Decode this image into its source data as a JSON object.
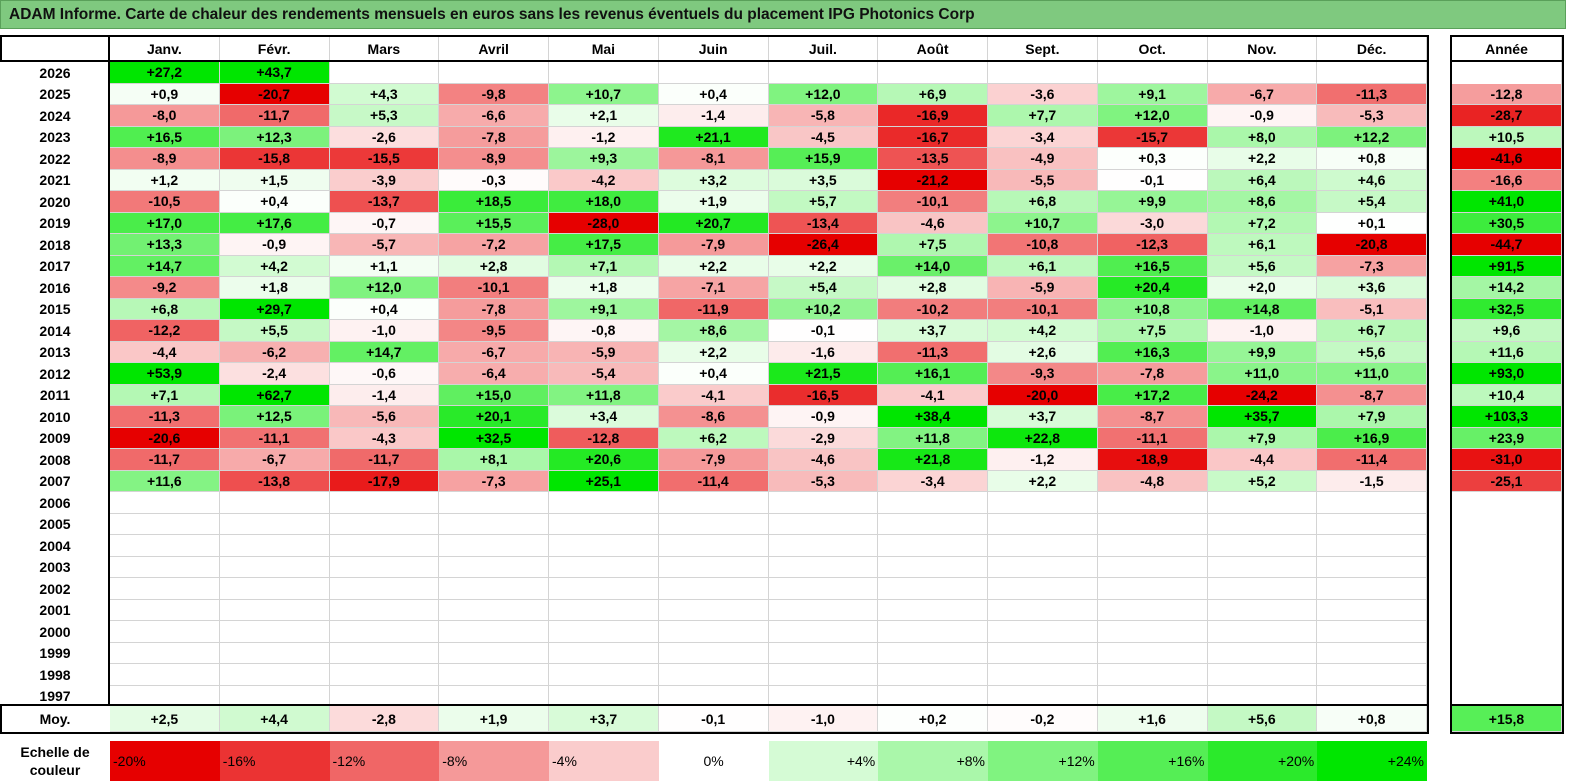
{
  "title": "ADAM Informe. Carte de chaleur des rendements mensuels en euros sans les revenus éventuels du placement IPG Photonics Corp",
  "chart_data": {
    "type": "heatmap",
    "months": [
      "Janv.",
      "Févr.",
      "Mars",
      "Avril",
      "Mai",
      "Juin",
      "Juil.",
      "Août",
      "Sept.",
      "Oct.",
      "Nov.",
      "Déc."
    ],
    "annual_header": "Année",
    "rows": [
      {
        "year": "2026",
        "values": [
          "+27,2",
          "+43,7",
          "",
          "",
          "",
          "",
          "",
          "",
          "",
          "",
          "",
          ""
        ],
        "annual": ""
      },
      {
        "year": "2025",
        "values": [
          "+0,9",
          "-20,7",
          "+4,3",
          "-9,8",
          "+10,7",
          "+0,4",
          "+12,0",
          "+6,9",
          "-3,6",
          "+9,1",
          "-6,7",
          "-11,3"
        ],
        "annual": "-12,8"
      },
      {
        "year": "2024",
        "values": [
          "-8,0",
          "-11,7",
          "+5,3",
          "-6,6",
          "+2,1",
          "-1,4",
          "-5,8",
          "-16,9",
          "+7,7",
          "+12,0",
          "-0,9",
          "-5,3"
        ],
        "annual": "-28,7"
      },
      {
        "year": "2023",
        "values": [
          "+16,5",
          "+12,3",
          "-2,6",
          "-7,8",
          "-1,2",
          "+21,1",
          "-4,5",
          "-16,7",
          "-3,4",
          "-15,7",
          "+8,0",
          "+12,2"
        ],
        "annual": "+10,5"
      },
      {
        "year": "2022",
        "values": [
          "-8,9",
          "-15,8",
          "-15,5",
          "-8,9",
          "+9,3",
          "-8,1",
          "+15,9",
          "-13,5",
          "-4,9",
          "+0,3",
          "+2,2",
          "+0,8"
        ],
        "annual": "-41,6"
      },
      {
        "year": "2021",
        "values": [
          "+1,2",
          "+1,5",
          "-3,9",
          "-0,3",
          "-4,2",
          "+3,2",
          "+3,5",
          "-21,2",
          "-5,5",
          "-0,1",
          "+6,4",
          "+4,6"
        ],
        "annual": "-16,6"
      },
      {
        "year": "2020",
        "values": [
          "-10,5",
          "+0,4",
          "-13,7",
          "+18,5",
          "+18,0",
          "+1,9",
          "+5,7",
          "-10,1",
          "+6,8",
          "+9,9",
          "+8,6",
          "+5,4"
        ],
        "annual": "+41,0"
      },
      {
        "year": "2019",
        "values": [
          "+17,0",
          "+17,6",
          "-0,7",
          "+15,5",
          "-28,0",
          "+20,7",
          "-13,4",
          "-4,6",
          "+10,7",
          "-3,0",
          "+7,2",
          "+0,1"
        ],
        "annual": "+30,5"
      },
      {
        "year": "2018",
        "values": [
          "+13,3",
          "-0,9",
          "-5,7",
          "-7,2",
          "+17,5",
          "-7,9",
          "-26,4",
          "+7,5",
          "-10,8",
          "-12,3",
          "+6,1",
          "-20,8"
        ],
        "annual": "-44,7"
      },
      {
        "year": "2017",
        "values": [
          "+14,7",
          "+4,2",
          "+1,1",
          "+2,8",
          "+7,1",
          "+2,2",
          "+2,2",
          "+14,0",
          "+6,1",
          "+16,5",
          "+5,6",
          "-7,3"
        ],
        "annual": "+91,5"
      },
      {
        "year": "2016",
        "values": [
          "-9,2",
          "+1,8",
          "+12,0",
          "-10,1",
          "+1,8",
          "-7,1",
          "+5,4",
          "+2,8",
          "-5,9",
          "+20,4",
          "+2,0",
          "+3,6"
        ],
        "annual": "+14,2"
      },
      {
        "year": "2015",
        "values": [
          "+6,8",
          "+29,7",
          "+0,4",
          "-7,8",
          "+9,1",
          "-11,9",
          "+10,2",
          "-10,2",
          "-10,1",
          "+10,8",
          "+14,8",
          "-5,1"
        ],
        "annual": "+32,5"
      },
      {
        "year": "2014",
        "values": [
          "-12,2",
          "+5,5",
          "-1,0",
          "-9,5",
          "-0,8",
          "+8,6",
          "-0,1",
          "+3,7",
          "+4,2",
          "+7,5",
          "-1,0",
          "+6,7"
        ],
        "annual": "+9,6"
      },
      {
        "year": "2013",
        "values": [
          "-4,4",
          "-6,2",
          "+14,7",
          "-6,7",
          "-5,9",
          "+2,2",
          "-1,6",
          "-11,3",
          "+2,6",
          "+16,3",
          "+9,9",
          "+5,6"
        ],
        "annual": "+11,6"
      },
      {
        "year": "2012",
        "values": [
          "+53,9",
          "-2,4",
          "-0,6",
          "-6,4",
          "-5,4",
          "+0,4",
          "+21,5",
          "+16,1",
          "-9,3",
          "-7,8",
          "+11,0",
          "+11,0"
        ],
        "annual": "+93,0"
      },
      {
        "year": "2011",
        "values": [
          "+7,1",
          "+62,7",
          "-1,4",
          "+15,0",
          "+11,8",
          "-4,1",
          "-16,5",
          "-4,1",
          "-20,0",
          "+17,2",
          "-24,2",
          "-8,7"
        ],
        "annual": "+10,4"
      },
      {
        "year": "2010",
        "values": [
          "-11,3",
          "+12,5",
          "-5,6",
          "+20,1",
          "+3,4",
          "-8,6",
          "-0,9",
          "+38,4",
          "+3,7",
          "-8,7",
          "+35,7",
          "+7,9"
        ],
        "annual": "+103,3"
      },
      {
        "year": "2009",
        "values": [
          "-20,6",
          "-11,1",
          "-4,3",
          "+32,5",
          "-12,8",
          "+6,2",
          "-2,9",
          "+11,8",
          "+22,8",
          "-11,1",
          "+7,9",
          "+16,9"
        ],
        "annual": "+23,9"
      },
      {
        "year": "2008",
        "values": [
          "-11,7",
          "-6,7",
          "-11,7",
          "+8,1",
          "+20,6",
          "-7,9",
          "-4,6",
          "+21,8",
          "-1,2",
          "-18,9",
          "-4,4",
          "-11,4"
        ],
        "annual": "-31,0"
      },
      {
        "year": "2007",
        "values": [
          "+11,6",
          "-13,8",
          "-17,9",
          "-7,3",
          "+25,1",
          "-11,4",
          "-5,3",
          "-3,4",
          "+2,2",
          "-4,8",
          "+5,2",
          "-1,5"
        ],
        "annual": "-25,1"
      },
      {
        "year": "2006",
        "values": [
          "",
          "",
          "",
          "",
          "",
          "",
          "",
          "",
          "",
          "",
          "",
          ""
        ],
        "annual": ""
      },
      {
        "year": "2005",
        "values": [
          "",
          "",
          "",
          "",
          "",
          "",
          "",
          "",
          "",
          "",
          "",
          ""
        ],
        "annual": ""
      },
      {
        "year": "2004",
        "values": [
          "",
          "",
          "",
          "",
          "",
          "",
          "",
          "",
          "",
          "",
          "",
          ""
        ],
        "annual": ""
      },
      {
        "year": "2003",
        "values": [
          "",
          "",
          "",
          "",
          "",
          "",
          "",
          "",
          "",
          "",
          "",
          ""
        ],
        "annual": ""
      },
      {
        "year": "2002",
        "values": [
          "",
          "",
          "",
          "",
          "",
          "",
          "",
          "",
          "",
          "",
          "",
          ""
        ],
        "annual": ""
      },
      {
        "year": "2001",
        "values": [
          "",
          "",
          "",
          "",
          "",
          "",
          "",
          "",
          "",
          "",
          "",
          ""
        ],
        "annual": ""
      },
      {
        "year": "2000",
        "values": [
          "",
          "",
          "",
          "",
          "",
          "",
          "",
          "",
          "",
          "",
          "",
          ""
        ],
        "annual": ""
      },
      {
        "year": "1999",
        "values": [
          "",
          "",
          "",
          "",
          "",
          "",
          "",
          "",
          "",
          "",
          "",
          ""
        ],
        "annual": ""
      },
      {
        "year": "1998",
        "values": [
          "",
          "",
          "",
          "",
          "",
          "",
          "",
          "",
          "",
          "",
          "",
          ""
        ],
        "annual": ""
      },
      {
        "year": "1997",
        "values": [
          "",
          "",
          "",
          "",
          "",
          "",
          "",
          "",
          "",
          "",
          "",
          ""
        ],
        "annual": ""
      }
    ],
    "average": {
      "label": "Moy.",
      "values": [
        "+2,5",
        "+4,4",
        "-2,8",
        "+1,9",
        "+3,7",
        "-0,1",
        "-1,0",
        "+0,2",
        "-0,2",
        "+1,6",
        "+5,6",
        "+0,8"
      ],
      "annual": "+15,8"
    },
    "color_scale": {
      "label_line1": "Echelle de",
      "label_line2": "couleur",
      "stops": [
        "-20%",
        "-16%",
        "-12%",
        "-8%",
        "-4%",
        "0%",
        "+4%",
        "+8%",
        "+12%",
        "+16%",
        "+20%",
        "+24%"
      ],
      "stop_values": [
        -20,
        -16,
        -12,
        -8,
        -4,
        0,
        4,
        8,
        12,
        16,
        20,
        24
      ]
    },
    "colors": {
      "negative": "#ff0000",
      "neutral": "#ffffff",
      "positive": "#00e600"
    }
  }
}
